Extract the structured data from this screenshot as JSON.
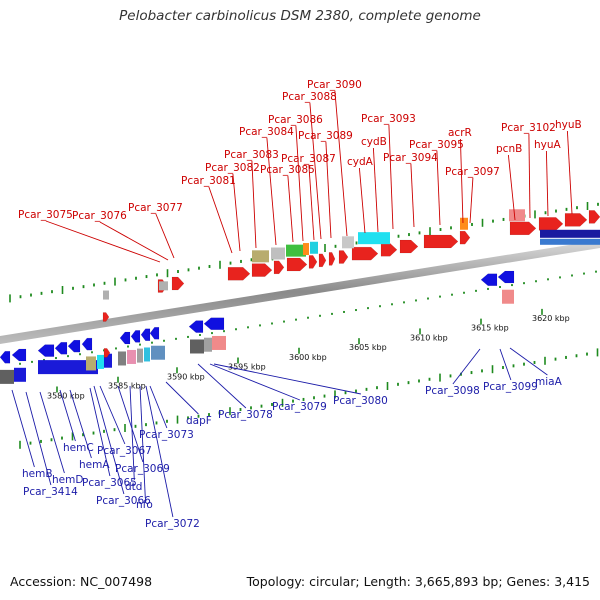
{
  "title": "Pelobacter carbinolicus DSM 2380, complete genome",
  "footer": {
    "accession": "Accession: NC_007498",
    "topology": "Topology: circular; Length: 3,665,893 bp; Genes: 3,415"
  },
  "scale_ticks": [
    "3580 kbp",
    "3585 kbp",
    "3590 kbp",
    "3595 kbp",
    "3600 kbp",
    "3605 kbp",
    "3610 kbp",
    "3615 kbp",
    "3620 kbp"
  ],
  "top_labels": [
    "Pcar_3075",
    "Pcar_3076",
    "Pcar_3077",
    "Pcar_3081",
    "Pcar_3082",
    "Pcar_3083",
    "Pcar_3084",
    "Pcar_3085",
    "Pcar_3086",
    "Pcar_3087",
    "Pcar_3088",
    "Pcar_3089",
    "Pcar_3090",
    "cydA",
    "cydB",
    "Pcar_3093",
    "Pcar_3094",
    "Pcar_3095",
    "acrR",
    "Pcar_3097",
    "pcnB",
    "Pcar_3102",
    "hyuA",
    "hyuB"
  ],
  "bottom_labels": [
    "hemB",
    "Pcar_3414",
    "hemD",
    "hemC",
    "hemA",
    "Pcar_3065",
    "Pcar_3066",
    "Pcar_3067",
    "Pcar_3069",
    "dtd",
    "nfo",
    "Pcar_3072",
    "Pcar_3073",
    "dapF",
    "Pcar_3078",
    "Pcar_3079",
    "Pcar_3080",
    "Pcar_3098",
    "Pcar_3099",
    "miaA"
  ]
}
